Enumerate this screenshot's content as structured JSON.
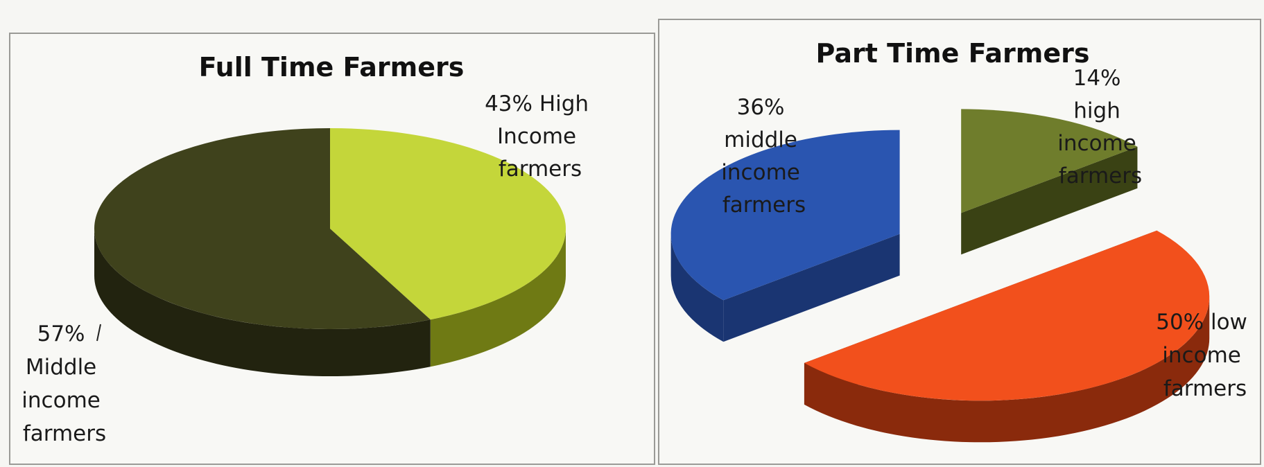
{
  "chart_data": [
    {
      "type": "pie",
      "title": "Full Time Farmers",
      "slices": [
        {
          "value": 43,
          "label": "43% High Income farmers",
          "label_lines": [
            "43% High",
            "Income",
            "farmers"
          ],
          "color": "#c4d63a",
          "side_color": "#6f7a14"
        },
        {
          "value": 57,
          "label": "57% Middle income farmers",
          "label_lines": [
            "57%",
            "Middle",
            "income",
            "farmers"
          ],
          "color": "#3f421c",
          "side_color": "#22230f"
        }
      ]
    },
    {
      "type": "pie",
      "title": "Part Time Farmers",
      "slices": [
        {
          "value": 14,
          "label": "14% high income farmers",
          "label_lines": [
            "14%",
            "high",
            "income",
            "farmers"
          ],
          "color": "#6f7d2c",
          "side_color": "#3a4214"
        },
        {
          "value": 50,
          "label": "50% low income farmers",
          "label_lines": [
            "50% low",
            "income",
            "farmers"
          ],
          "color": "#f2501c",
          "side_color": "#8a2a0c"
        },
        {
          "value": 36,
          "label": "36% middle income farmers",
          "label_lines": [
            "36%",
            "middle",
            "income",
            "farmers"
          ],
          "color": "#2a55b0",
          "side_color": "#1a3572"
        }
      ]
    }
  ]
}
